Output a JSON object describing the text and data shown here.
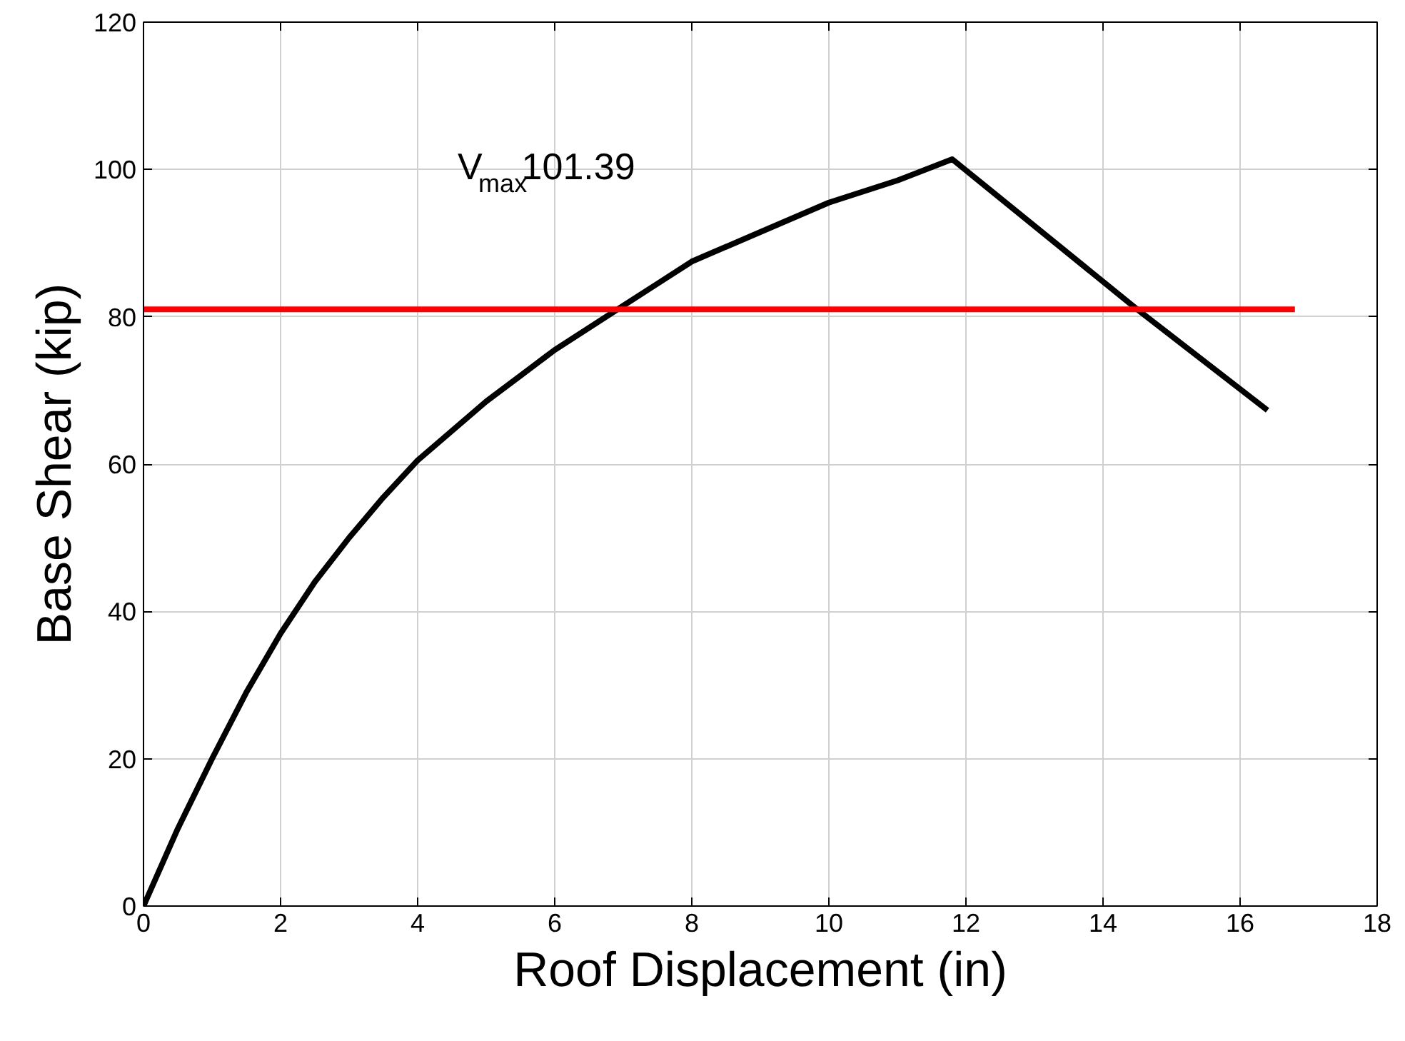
{
  "chart_data": {
    "type": "line",
    "xlabel": "Roof Displacement (in)",
    "ylabel": "Base Shear (kip)",
    "annotations": [
      "V$_{max}$101.39"
    ],
    "series": [
      {
        "color": "#000000",
        "x": [
          0,
          0.5,
          1,
          1.5,
          2,
          2.5,
          3,
          3.5,
          4,
          4.5,
          5,
          5.5,
          6,
          6.5,
          7,
          7.5,
          8,
          9,
          10,
          11,
          11.8,
          14.5,
          16.4
        ],
        "values": [
          0,
          10.5,
          20,
          29,
          37,
          44,
          50,
          55.5,
          60.5,
          64.5,
          68.5,
          72,
          75.5,
          78.5,
          81.5,
          84.5,
          87.5,
          91.5,
          95.5,
          98.5,
          101.39,
          81,
          67.3
        ]
      },
      {
        "color": "#ff0000",
        "x": [
          0,
          16.8
        ],
        "values": [
          81,
          81
        ]
      }
    ],
    "xlim": [
      0,
      18
    ],
    "ylim": [
      0,
      120
    ],
    "xticks": [
      0,
      2,
      4,
      6,
      8,
      10,
      12,
      14,
      16,
      18
    ],
    "yticks": [
      0,
      20,
      40,
      60,
      80,
      100,
      120
    ],
    "grid": true,
    "marker": "none",
    "line_style": "solid"
  }
}
